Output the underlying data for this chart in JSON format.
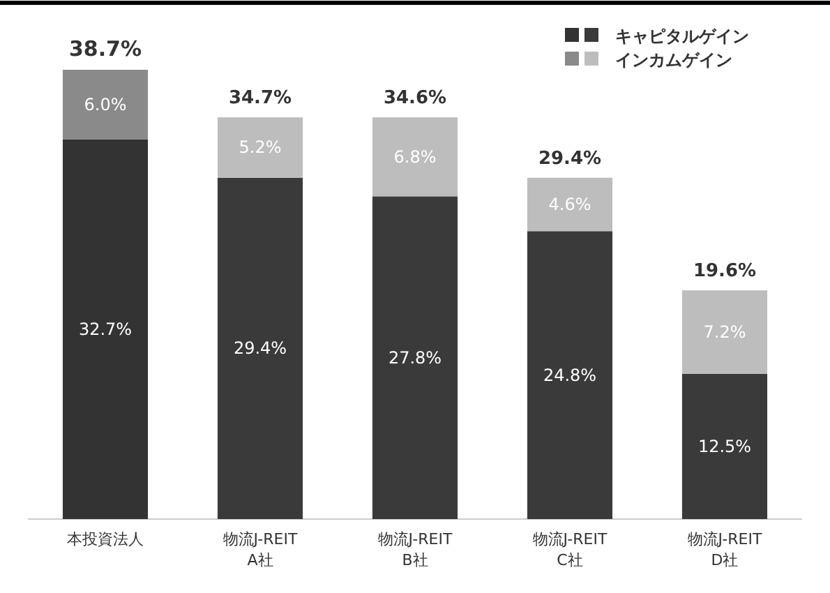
{
  "chart_data": {
    "type": "bar",
    "stacked": true,
    "legend": "top right",
    "categories": [
      "本投資法人",
      "物流J-REIT A社",
      "物流J-REIT B社",
      "物流J-REIT C社",
      "物流J-REIT D社"
    ],
    "series": [
      {
        "name": "キャピタルゲイン",
        "colors": [
          "#333333",
          "#3a3a3a",
          "#3a3a3a",
          "#3a3a3a",
          "#3a3a3a"
        ],
        "values": [
          32.7,
          29.4,
          27.8,
          24.8,
          12.5
        ],
        "value_labels": [
          "32.7%",
          "29.4%",
          "27.8%",
          "24.8%",
          "12.5%"
        ]
      },
      {
        "name": "インカムゲイン",
        "colors": [
          "#8a8a8a",
          "#bdbdbd",
          "#bdbdbd",
          "#bdbdbd",
          "#bdbdbd"
        ],
        "values": [
          6.0,
          5.2,
          6.8,
          4.6,
          7.2
        ],
        "value_labels": [
          "6.0%",
          "5.2%",
          "6.8%",
          "4.6%",
          "7.2%"
        ]
      }
    ],
    "totals": [
      "38.7%",
      "34.7%",
      "34.6%",
      "29.4%",
      "19.6%"
    ]
  }
}
